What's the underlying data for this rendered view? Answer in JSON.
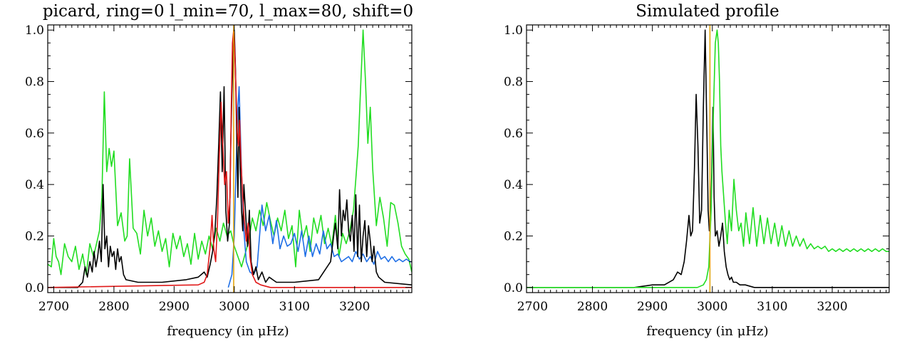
{
  "chart_data": [
    {
      "type": "line",
      "title": "picard, ring=0 l_min=70, l_max=80, shift=0",
      "xlabel": "frequency (in μHz)",
      "ylabel": "",
      "xlim": [
        2690,
        3295
      ],
      "ylim": [
        -0.02,
        1.02
      ],
      "x_ticks": [
        2700,
        2800,
        2900,
        3000,
        3100,
        3200
      ],
      "y_ticks": [
        0.0,
        0.2,
        0.4,
        0.6,
        0.8,
        1.0
      ],
      "x_tick_labels": [
        "2700",
        "2800",
        "2900",
        "3000",
        "3100",
        "3200"
      ],
      "y_tick_labels": [
        "0.0",
        "0.2",
        "0.4",
        "0.6",
        "0.8",
        "1.0"
      ],
      "vlines": [
        {
          "x": 2999,
          "color": "#e0a000"
        }
      ],
      "series": [
        {
          "color": "#22dd22",
          "x": [
            2690,
            2696,
            2700,
            2704,
            2708,
            2712,
            2718,
            2724,
            2730,
            2736,
            2742,
            2748,
            2754,
            2760,
            2766,
            2772,
            2776,
            2780,
            2784,
            2788,
            2792,
            2796,
            2800,
            2806,
            2812,
            2818,
            2822,
            2826,
            2832,
            2838,
            2844,
            2850,
            2856,
            2862,
            2868,
            2874,
            2880,
            2886,
            2892,
            2898,
            2904,
            2910,
            2916,
            2922,
            2928,
            2934,
            2940,
            2946,
            2952,
            2958,
            2964,
            2970,
            2976,
            2982,
            2988,
            2994,
            3000,
            3006,
            3012,
            3018,
            3024,
            3030,
            3036,
            3042,
            3048,
            3054,
            3060,
            3066,
            3072,
            3078,
            3084,
            3090,
            3096,
            3102,
            3108,
            3114,
            3120,
            3126,
            3132,
            3138,
            3144,
            3150,
            3156,
            3162,
            3168,
            3174,
            3180,
            3186,
            3192,
            3198,
            3202,
            3206,
            3210,
            3214,
            3218,
            3222,
            3226,
            3230,
            3236,
            3242,
            3248,
            3254,
            3260,
            3266,
            3272,
            3278,
            3284,
            3290,
            3295
          ],
          "y": [
            0.09,
            0.08,
            0.19,
            0.12,
            0.1,
            0.05,
            0.17,
            0.12,
            0.1,
            0.16,
            0.07,
            0.13,
            0.05,
            0.17,
            0.12,
            0.18,
            0.22,
            0.35,
            0.76,
            0.45,
            0.54,
            0.47,
            0.53,
            0.24,
            0.29,
            0.18,
            0.2,
            0.5,
            0.23,
            0.21,
            0.13,
            0.3,
            0.2,
            0.27,
            0.16,
            0.22,
            0.14,
            0.19,
            0.08,
            0.21,
            0.15,
            0.2,
            0.12,
            0.17,
            0.09,
            0.21,
            0.11,
            0.18,
            0.13,
            0.2,
            0.15,
            0.23,
            0.18,
            0.25,
            0.2,
            0.22,
            0.16,
            0.12,
            0.08,
            0.13,
            0.18,
            0.27,
            0.22,
            0.3,
            0.24,
            0.33,
            0.26,
            0.2,
            0.27,
            0.22,
            0.3,
            0.19,
            0.24,
            0.08,
            0.3,
            0.19,
            0.24,
            0.14,
            0.27,
            0.21,
            0.28,
            0.17,
            0.23,
            0.16,
            0.28,
            0.12,
            0.21,
            0.17,
            0.22,
            0.3,
            0.42,
            0.55,
            0.78,
            1.0,
            0.8,
            0.56,
            0.7,
            0.46,
            0.24,
            0.35,
            0.27,
            0.16,
            0.33,
            0.32,
            0.25,
            0.16,
            0.13,
            0.11,
            0.06
          ]
        },
        {
          "color": "#1e6ee6",
          "x": [
            2990,
            2996,
            3000,
            3004,
            3006,
            3008,
            3012,
            3016,
            3020,
            3026,
            3032,
            3038,
            3042,
            3046,
            3052,
            3058,
            3064,
            3070,
            3076,
            3082,
            3088,
            3094,
            3100,
            3106,
            3112,
            3118,
            3124,
            3130,
            3136,
            3142,
            3148,
            3154,
            3160,
            3166,
            3172,
            3178,
            3184,
            3190,
            3196,
            3202,
            3208,
            3214,
            3220,
            3226,
            3232,
            3238,
            3244,
            3250,
            3256,
            3262,
            3268,
            3274,
            3280,
            3286,
            3292,
            3295
          ],
          "y": [
            0.0,
            0.05,
            0.2,
            0.55,
            0.7,
            0.78,
            0.45,
            0.22,
            0.1,
            0.06,
            0.05,
            0.08,
            0.2,
            0.32,
            0.22,
            0.28,
            0.17,
            0.26,
            0.15,
            0.2,
            0.16,
            0.17,
            0.21,
            0.14,
            0.22,
            0.12,
            0.2,
            0.12,
            0.17,
            0.13,
            0.22,
            0.15,
            0.17,
            0.12,
            0.13,
            0.1,
            0.11,
            0.12,
            0.1,
            0.14,
            0.11,
            0.13,
            0.1,
            0.12,
            0.09,
            0.14,
            0.11,
            0.12,
            0.1,
            0.12,
            0.1,
            0.11,
            0.1,
            0.11,
            0.1,
            0.1
          ]
        },
        {
          "color": "#000000",
          "x": [
            2690,
            2740,
            2748,
            2752,
            2756,
            2760,
            2764,
            2767,
            2770,
            2773,
            2776,
            2779,
            2782,
            2785,
            2788,
            2791,
            2794,
            2797,
            2800,
            2803,
            2806,
            2809,
            2812,
            2816,
            2820,
            2840,
            2880,
            2920,
            2940,
            2950,
            2955,
            2960,
            2964,
            2968,
            2971,
            2974,
            2977,
            2980,
            2983,
            2986,
            2989,
            2992,
            2994,
            2996,
            2998,
            3000,
            3002,
            3004,
            3006,
            3008,
            3010,
            3012,
            3014,
            3016,
            3019,
            3022,
            3025,
            3028,
            3032,
            3036,
            3040,
            3046,
            3052,
            3058,
            3070,
            3100,
            3140,
            3160,
            3164,
            3168,
            3172,
            3175,
            3178,
            3181,
            3184,
            3187,
            3190,
            3193,
            3196,
            3199,
            3202,
            3205,
            3208,
            3211,
            3214,
            3217,
            3220,
            3223,
            3226,
            3229,
            3232,
            3236,
            3240,
            3250,
            3295
          ],
          "y": [
            0.0,
            0.0,
            0.02,
            0.08,
            0.04,
            0.1,
            0.06,
            0.14,
            0.08,
            0.12,
            0.18,
            0.1,
            0.4,
            0.15,
            0.2,
            0.08,
            0.16,
            0.12,
            0.14,
            0.07,
            0.15,
            0.1,
            0.12,
            0.05,
            0.03,
            0.02,
            0.02,
            0.03,
            0.04,
            0.06,
            0.04,
            0.09,
            0.14,
            0.22,
            0.35,
            0.55,
            0.76,
            0.45,
            0.78,
            0.3,
            0.18,
            0.25,
            0.55,
            0.75,
            0.9,
            1.0,
            0.85,
            0.6,
            0.35,
            0.7,
            0.45,
            0.3,
            0.22,
            0.4,
            0.28,
            0.16,
            0.3,
            0.1,
            0.05,
            0.08,
            0.03,
            0.06,
            0.02,
            0.04,
            0.02,
            0.02,
            0.03,
            0.1,
            0.18,
            0.25,
            0.15,
            0.38,
            0.2,
            0.3,
            0.26,
            0.34,
            0.22,
            0.18,
            0.28,
            0.14,
            0.36,
            0.12,
            0.32,
            0.1,
            0.2,
            0.26,
            0.12,
            0.24,
            0.18,
            0.1,
            0.16,
            0.06,
            0.04,
            0.02,
            0.01
          ]
        },
        {
          "color": "#e01818",
          "x": [
            2690,
            2940,
            2950,
            2955,
            2960,
            2963,
            2966,
            2969,
            2972,
            2975,
            2978,
            2981,
            2984,
            2987,
            2990,
            2993,
            2995,
            2997,
            2999,
            3001,
            3003,
            3005,
            3007,
            3009,
            3011,
            3014,
            3017,
            3020,
            3023,
            3026,
            3030,
            3036,
            3044,
            3060,
            3100,
            3295
          ],
          "y": [
            0.0,
            0.01,
            0.02,
            0.05,
            0.16,
            0.28,
            0.15,
            0.1,
            0.25,
            0.5,
            0.72,
            0.55,
            0.4,
            0.45,
            0.25,
            0.35,
            0.7,
            0.95,
            1.0,
            0.9,
            0.75,
            0.6,
            0.55,
            0.65,
            0.5,
            0.35,
            0.25,
            0.18,
            0.25,
            0.12,
            0.05,
            0.02,
            0.01,
            0.0,
            0.0,
            0.0
          ]
        }
      ]
    },
    {
      "type": "line",
      "title": "Simulated profile",
      "xlabel": "frequency (in μHz)",
      "ylabel": "",
      "xlim": [
        2690,
        3295
      ],
      "ylim": [
        -0.02,
        1.02
      ],
      "x_ticks": [
        2700,
        2800,
        2900,
        3000,
        3100,
        3200
      ],
      "y_ticks": [
        0.0,
        0.2,
        0.4,
        0.6,
        0.8,
        1.0
      ],
      "x_tick_labels": [
        "2700",
        "2800",
        "2900",
        "3000",
        "3100",
        "3200"
      ],
      "y_tick_labels": [
        "0.0",
        "0.2",
        "0.4",
        "0.6",
        "0.8",
        "1.0"
      ],
      "vlines": [
        {
          "x": 2996,
          "color": "#e0a000"
        }
      ],
      "series": [
        {
          "color": "#000000",
          "x": [
            2690,
            2870,
            2900,
            2920,
            2935,
            2942,
            2948,
            2953,
            2957,
            2961,
            2964,
            2967,
            2970,
            2973,
            2976,
            2979,
            2982,
            2985,
            2988,
            2991,
            2993,
            2995,
            2997,
            2999,
            3001,
            3003,
            3005,
            3008,
            3011,
            3014,
            3017,
            3020,
            3023,
            3026,
            3029,
            3032,
            3035,
            3040,
            3046,
            3055,
            3070,
            3100,
            3295
          ],
          "y": [
            0.0,
            0.0,
            0.01,
            0.01,
            0.03,
            0.06,
            0.05,
            0.1,
            0.18,
            0.28,
            0.2,
            0.22,
            0.45,
            0.75,
            0.55,
            0.25,
            0.3,
            0.7,
            1.0,
            0.6,
            0.3,
            0.22,
            0.26,
            0.45,
            0.7,
            0.35,
            0.2,
            0.22,
            0.16,
            0.2,
            0.25,
            0.14,
            0.08,
            0.05,
            0.03,
            0.04,
            0.02,
            0.02,
            0.01,
            0.01,
            0.0,
            0.0,
            0.0
          ]
        },
        {
          "color": "#22dd22",
          "x": [
            2690,
            2900,
            2950,
            2975,
            2985,
            2990,
            2994,
            2998,
            3002,
            3005,
            3008,
            3010,
            3012,
            3014,
            3016,
            3019,
            3022,
            3025,
            3028,
            3032,
            3036,
            3040,
            3044,
            3048,
            3052,
            3056,
            3062,
            3068,
            3074,
            3080,
            3086,
            3092,
            3098,
            3104,
            3110,
            3116,
            3122,
            3128,
            3134,
            3140,
            3146,
            3152,
            3158,
            3164,
            3170,
            3176,
            3182,
            3188,
            3194,
            3200,
            3206,
            3212,
            3218,
            3224,
            3230,
            3236,
            3242,
            3248,
            3254,
            3260,
            3266,
            3272,
            3278,
            3284,
            3290,
            3295
          ],
          "y": [
            0.0,
            0.0,
            0.0,
            0.0,
            0.01,
            0.03,
            0.08,
            0.3,
            0.7,
            0.95,
            1.0,
            0.95,
            0.8,
            0.55,
            0.45,
            0.35,
            0.25,
            0.17,
            0.3,
            0.22,
            0.42,
            0.3,
            0.22,
            0.25,
            0.16,
            0.29,
            0.17,
            0.31,
            0.16,
            0.28,
            0.17,
            0.27,
            0.17,
            0.25,
            0.16,
            0.24,
            0.16,
            0.22,
            0.16,
            0.2,
            0.16,
            0.19,
            0.15,
            0.17,
            0.15,
            0.16,
            0.15,
            0.16,
            0.14,
            0.15,
            0.14,
            0.15,
            0.14,
            0.15,
            0.14,
            0.15,
            0.14,
            0.15,
            0.14,
            0.15,
            0.14,
            0.15,
            0.14,
            0.15,
            0.14,
            0.14
          ]
        }
      ]
    }
  ]
}
